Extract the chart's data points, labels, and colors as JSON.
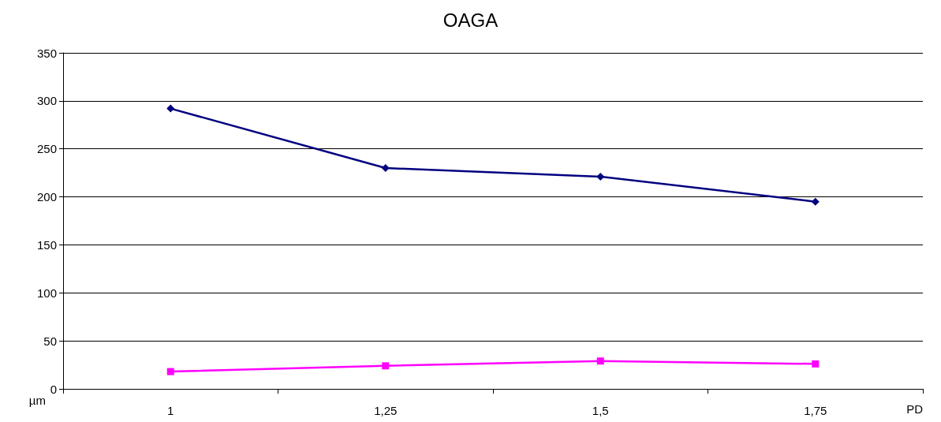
{
  "chart_data": {
    "type": "line",
    "title": "OAGA",
    "xlabel": "PD",
    "ylabel": "µm",
    "categories": [
      "1",
      "1,25",
      "1,5",
      "1,75"
    ],
    "series": [
      {
        "color": "#000080",
        "marker": "diamond",
        "values": [
          292,
          230,
          221,
          195
        ]
      },
      {
        "color": "#ff00ff",
        "marker": "square",
        "values": [
          18,
          24,
          29,
          26
        ]
      }
    ],
    "ylim": [
      0,
      350
    ],
    "yticks": [
      0,
      50,
      100,
      150,
      200,
      250,
      300,
      350
    ],
    "grid": "y"
  }
}
